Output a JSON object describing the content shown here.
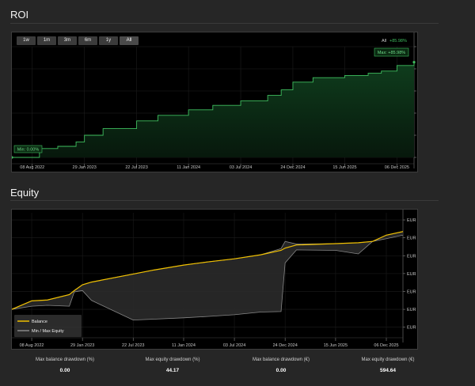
{
  "roi": {
    "title": "ROI",
    "range_buttons": [
      "1w",
      "1m",
      "3m",
      "6m",
      "1y",
      "All"
    ],
    "active_range": "All",
    "legend_all_label": "All",
    "legend_all_value": "+85.98%",
    "max_label": "Max: +85.98%",
    "min_label": "Min: 0.00%",
    "accent_color": "#3fbf5f",
    "chart_data": {
      "type": "area",
      "x": [
        "2022-06-01",
        "2022-09-01",
        "2022-11-01",
        "2023-01-01",
        "2023-01-29",
        "2023-04-01",
        "2023-07-22",
        "2023-10-01",
        "2024-01-11",
        "2024-04-01",
        "2024-07-03",
        "2024-10-01",
        "2024-11-15",
        "2024-12-24",
        "2025-03-01",
        "2025-06-15",
        "2025-09-01",
        "2025-10-15",
        "2025-12-06",
        "2026-02-01"
      ],
      "y": [
        0,
        8,
        10,
        14,
        20,
        26,
        33,
        38,
        43,
        47,
        51,
        56,
        61,
        68,
        72,
        74,
        76,
        78,
        83,
        86
      ],
      "x_tick_labels": [
        "08 Aug 2022",
        "29 Jan 2023",
        "22 Jul 2023",
        "11 Jan 2024",
        "03 Jul 2024",
        "24 Dec 2024",
        "15 Jun 2025",
        "06 Dec 2025"
      ],
      "y_tick_labels": [
        "0.00%",
        "+20.00%",
        "+40.00%",
        "+60.00%",
        "+80.00%",
        "+100.00%"
      ],
      "ylim": [
        0,
        100
      ]
    }
  },
  "equity": {
    "title": "Equity",
    "balance_color": "#f0c000",
    "minmax_color": "#888888",
    "legend": [
      {
        "name": "Balance"
      },
      {
        "name": "Min / Max Equity"
      }
    ],
    "chart_data": {
      "type": "line",
      "x": [
        "2022-06-01",
        "2022-08-08",
        "2022-10-01",
        "2022-12-15",
        "2023-01-01",
        "2023-01-29",
        "2023-03-01",
        "2023-07-22",
        "2023-10-01",
        "2024-01-11",
        "2024-04-01",
        "2024-07-03",
        "2024-10-01",
        "2024-12-10",
        "2024-12-24",
        "2025-02-01",
        "2025-06-15",
        "2025-09-01",
        "2025-10-20",
        "2025-12-06",
        "2026-02-01"
      ],
      "series": [
        {
          "name": "Balance",
          "values": [
            1000,
            1095,
            1105,
            1165,
            1210,
            1275,
            1305,
            1395,
            1440,
            1495,
            1530,
            1565,
            1610,
            1660,
            1685,
            1720,
            1735,
            1745,
            1760,
            1830,
            1870
          ]
        },
        {
          "name": "Max Equity",
          "values": [
            1000,
            1095,
            1105,
            1165,
            1210,
            1275,
            1305,
            1395,
            1440,
            1495,
            1530,
            1565,
            1610,
            1680,
            1760,
            1730,
            1735,
            1745,
            1760,
            1830,
            1870
          ]
        },
        {
          "name": "Min Equity",
          "values": [
            1000,
            1035,
            1045,
            1035,
            1195,
            1210,
            1100,
            880,
            890,
            905,
            920,
            940,
            970,
            975,
            1520,
            1665,
            1660,
            1620,
            1760,
            1790,
            1830
          ]
        }
      ],
      "x_tick_labels": [
        "08 Aug 2022",
        "29 Jan 2023",
        "22 Jul 2023",
        "11 Jan 2024",
        "03 Jul 2024",
        "24 Dec 2024",
        "15 Jun 2025",
        "06 Dec 2025"
      ],
      "y_tick_labels": [
        "EUR 800.00",
        "EUR 1 000.00",
        "EUR 1 200.00",
        "EUR 1 400.00",
        "EUR 1 600.00",
        "EUR 1 800.00",
        "EUR 2 000.00"
      ],
      "ylim": [
        700,
        2080
      ]
    }
  },
  "stats": [
    {
      "label": "Max balance drawdown (%)",
      "value": "0.00"
    },
    {
      "label": "Max equity drawdown (%)",
      "value": "44.17"
    },
    {
      "label": "Max balance drawdown (€)",
      "value": "0.00"
    },
    {
      "label": "Max equity drawdown (€)",
      "value": "594.64"
    }
  ]
}
